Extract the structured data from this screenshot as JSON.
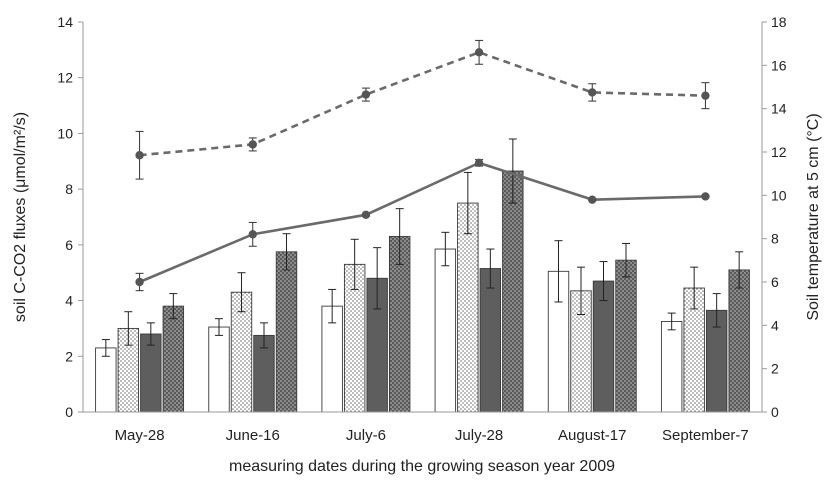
{
  "chart_data": {
    "type": "bar",
    "title": "",
    "xlabel": "measuring dates during the growing season year 2009",
    "ylabel_left": "soil C-CO2 fluxes  (μmol/m²/s)",
    "ylabel_right": "Soil temperature at 5 cm (°C)",
    "categories": [
      "May-28",
      "June-16",
      "July-6",
      "July-28",
      "August-17",
      "September-7"
    ],
    "ylim_left": [
      0,
      14
    ],
    "yticks_left": [
      "0",
      "2",
      "4",
      "6",
      "8",
      "10",
      "12",
      "14"
    ],
    "ylim_right": [
      0,
      18
    ],
    "yticks_right": [
      "0",
      "2",
      "4",
      "6",
      "8",
      "10",
      "12",
      "14",
      "16",
      "18"
    ],
    "bar_series": [
      {
        "pattern": "white",
        "values": [
          2.3,
          3.05,
          3.8,
          5.85,
          5.05,
          3.25
        ],
        "errors": [
          0.3,
          0.3,
          0.6,
          0.6,
          1.1,
          0.3
        ]
      },
      {
        "pattern": "dotted",
        "values": [
          3.0,
          4.3,
          5.3,
          7.5,
          4.35,
          4.45
        ],
        "errors": [
          0.6,
          0.7,
          0.9,
          1.1,
          0.85,
          0.75
        ]
      },
      {
        "pattern": "dark",
        "values": [
          2.8,
          2.75,
          4.8,
          5.15,
          4.7,
          3.65
        ],
        "errors": [
          0.4,
          0.45,
          1.1,
          0.7,
          0.7,
          0.6
        ]
      },
      {
        "pattern": "dark-dotted",
        "values": [
          3.8,
          5.75,
          6.3,
          8.65,
          5.45,
          5.1
        ],
        "errors": [
          0.45,
          0.65,
          1.0,
          1.15,
          0.6,
          0.65
        ]
      }
    ],
    "line_series": [
      {
        "style": "dashed",
        "axis": "right",
        "values": [
          11.85,
          12.35,
          14.65,
          16.6,
          14.75,
          14.6
        ],
        "errors": [
          1.1,
          0.3,
          0.3,
          0.55,
          0.4,
          0.6
        ]
      },
      {
        "style": "solid",
        "axis": "right",
        "values": [
          6.0,
          8.2,
          9.1,
          11.5,
          9.8,
          9.95
        ],
        "errors": [
          0.4,
          0.55,
          0.05,
          0.15,
          0.05,
          0.05
        ]
      }
    ],
    "colors": {
      "axis": "#9a9a9a",
      "dark_bar": "#5e5e5e",
      "line": "#6a6a6a",
      "marker": "#555555"
    }
  }
}
